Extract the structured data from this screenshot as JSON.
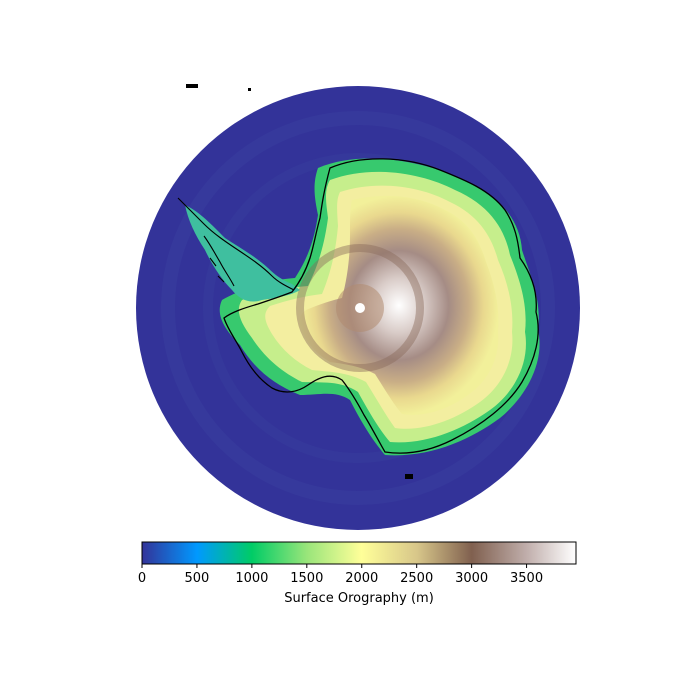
{
  "map": {
    "variable": "Surface Orography",
    "projection": "south-polar-stereographic",
    "colormap": "terrain",
    "colormap_stops": [
      "#333399",
      "#0099ff",
      "#00cc66",
      "#99e57a",
      "#ffff99",
      "#d8c78a",
      "#80604f",
      "#c0aeab",
      "#ffffff"
    ],
    "ocean_color": "#333399",
    "coastline_color": "#000000"
  },
  "colorbar": {
    "label": "Surface Orography (m)",
    "min": 0,
    "max": 3950,
    "ticks": [
      "0",
      "500",
      "1000",
      "1500",
      "2000",
      "2500",
      "3000",
      "3500"
    ],
    "tick_values": [
      0,
      500,
      1000,
      1500,
      2000,
      2500,
      3000,
      3500
    ]
  }
}
